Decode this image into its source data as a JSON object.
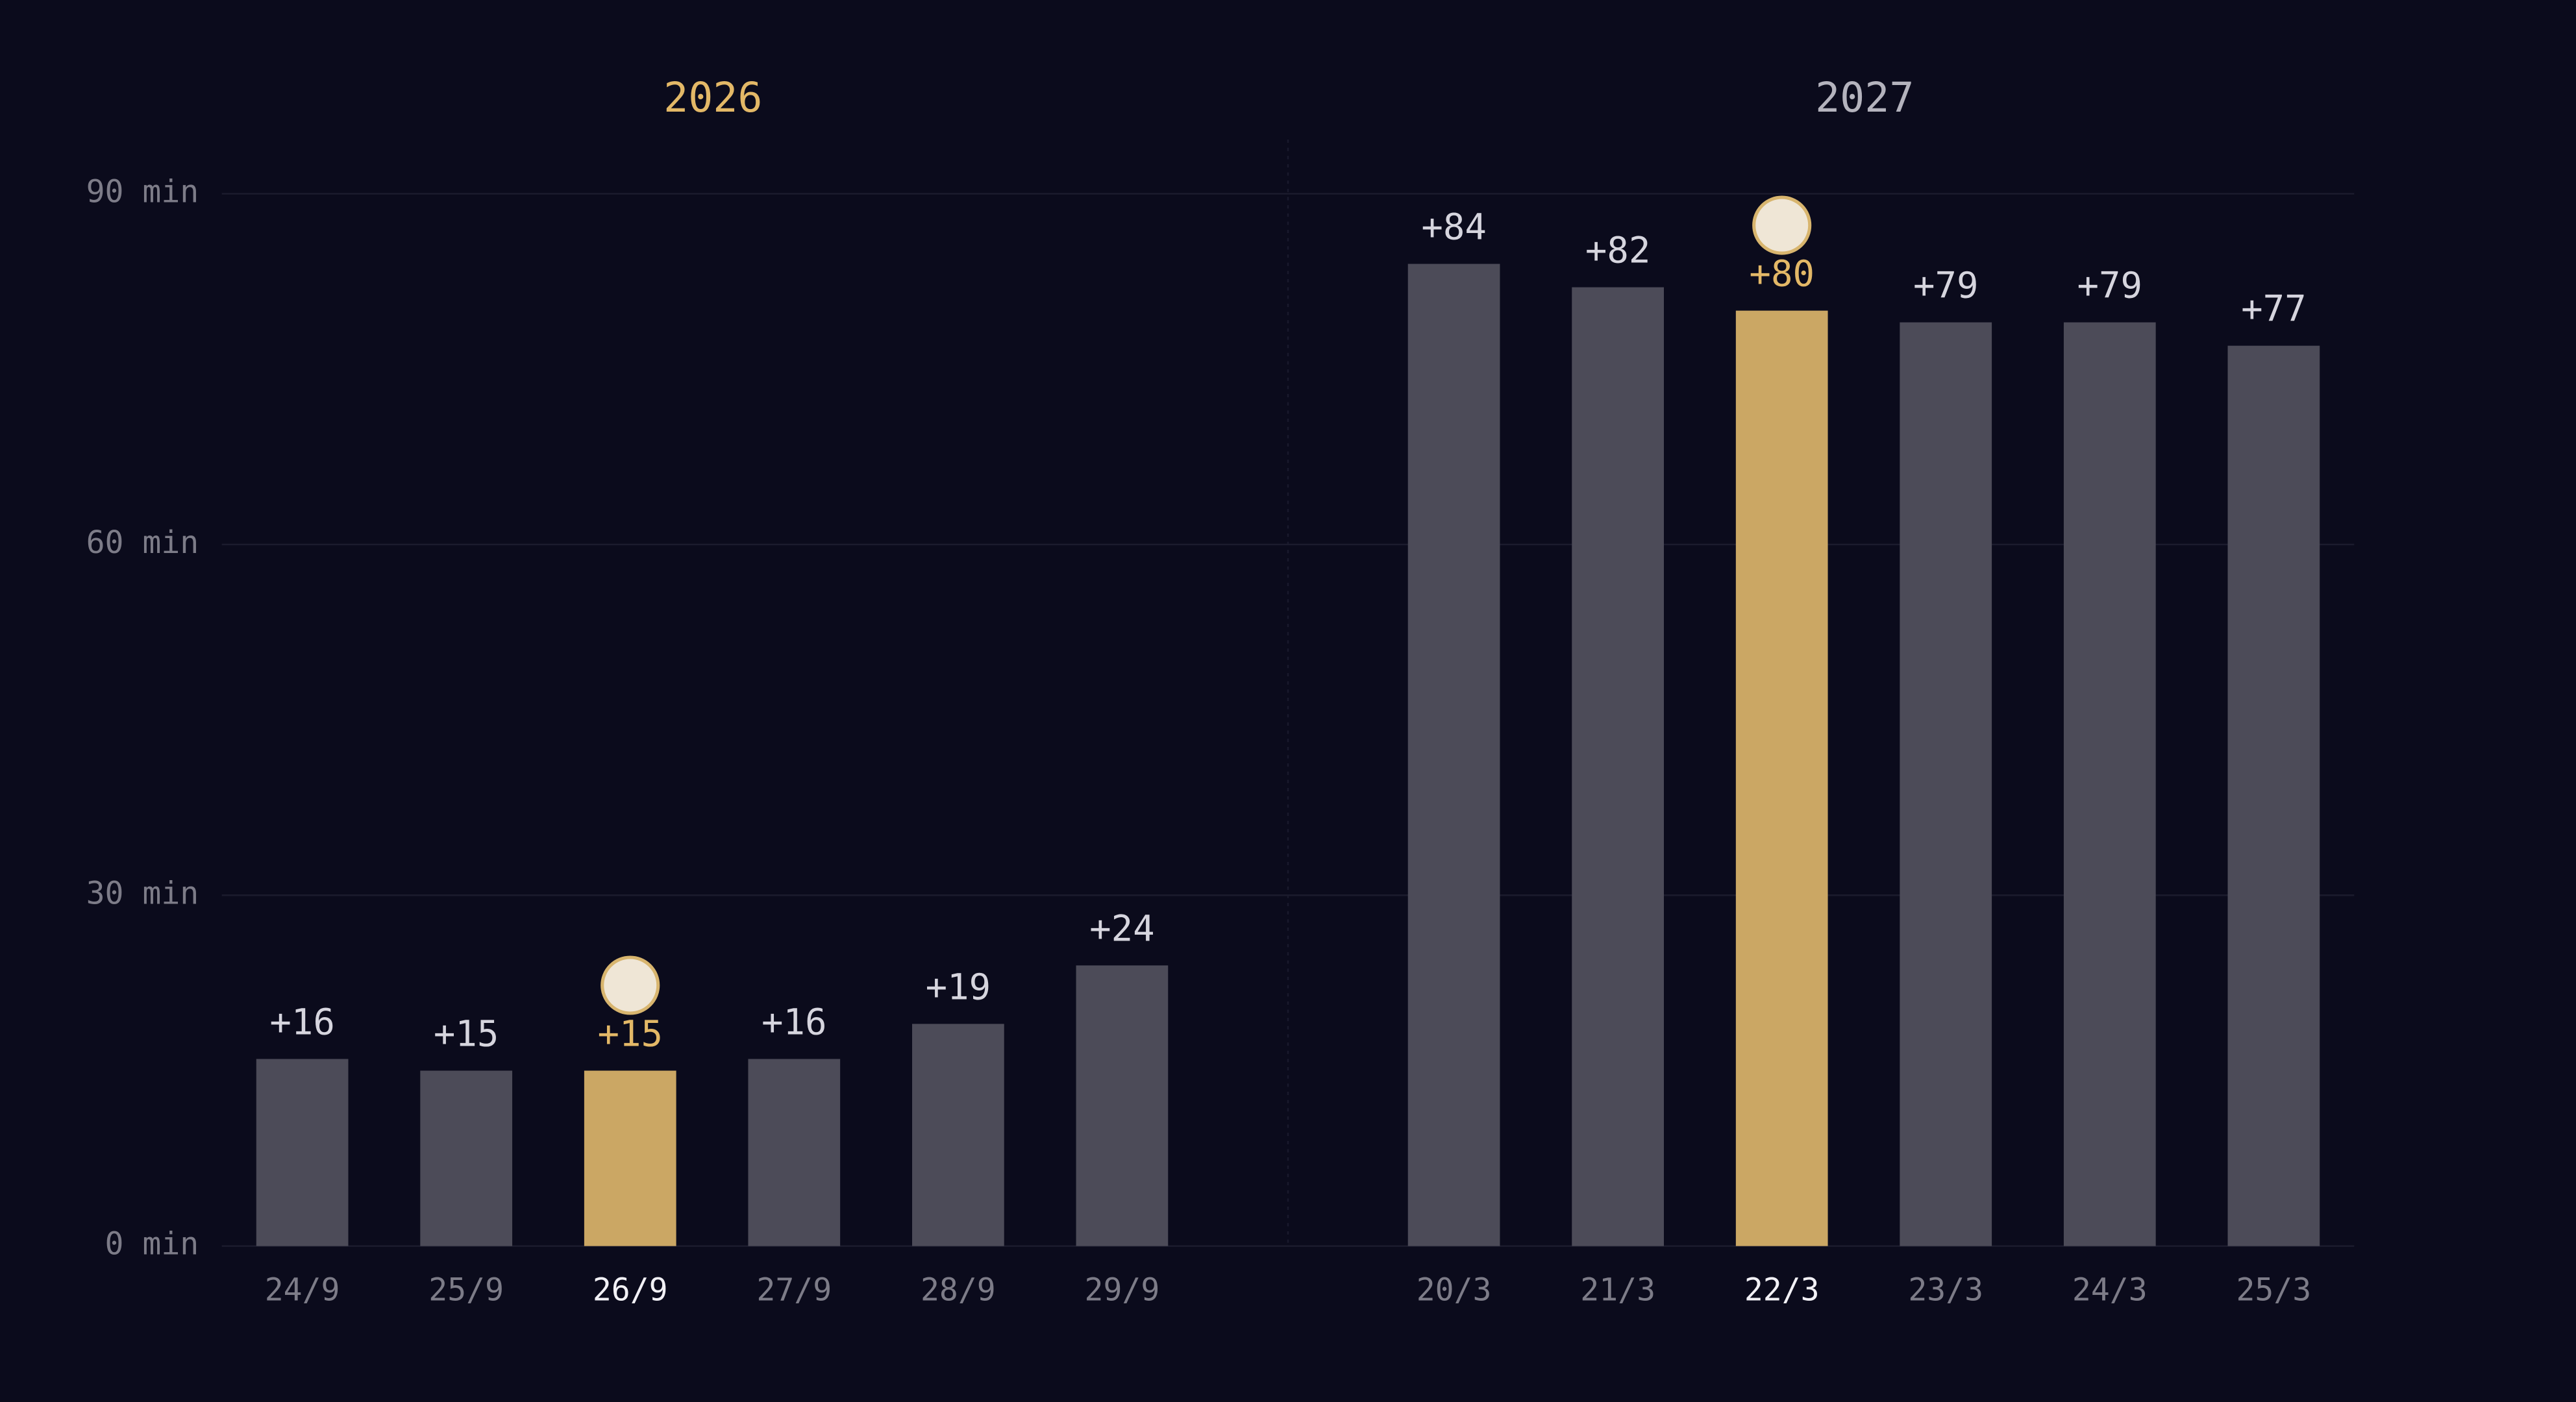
{
  "chart_data": [
    {
      "type": "bar",
      "title": "2026",
      "title_color": "#e3b867",
      "categories": [
        "24/9",
        "25/9",
        "26/9",
        "27/9",
        "28/9",
        "29/9"
      ],
      "values": [
        16,
        15,
        15,
        16,
        19,
        24
      ],
      "value_labels": [
        "+16",
        "+15",
        "+15",
        "+16",
        "+19",
        "+24"
      ],
      "color": "#4c4b58",
      "highlight_color": "#cba764",
      "highlight_index": 2,
      "ylim": [
        0,
        90
      ],
      "yticks": [
        {
          "value": 0,
          "label": "0 min"
        },
        {
          "value": 30,
          "label": "30 min"
        },
        {
          "value": 60,
          "label": "60 min"
        },
        {
          "value": 90,
          "label": "90 min"
        }
      ],
      "grid": true
    },
    {
      "type": "bar",
      "title": "2027",
      "title_color": "#b4b3bd",
      "categories": [
        "20/3",
        "21/3",
        "22/3",
        "23/3",
        "24/3",
        "25/3"
      ],
      "values": [
        84,
        82,
        80,
        79,
        79,
        77
      ],
      "value_labels": [
        "+84",
        "+82",
        "+80",
        "+79",
        "+79",
        "+77"
      ],
      "color": "#4c4b58",
      "highlight_color": "#cba764",
      "highlight_index": 2,
      "ylim": [
        0,
        90
      ]
    }
  ]
}
